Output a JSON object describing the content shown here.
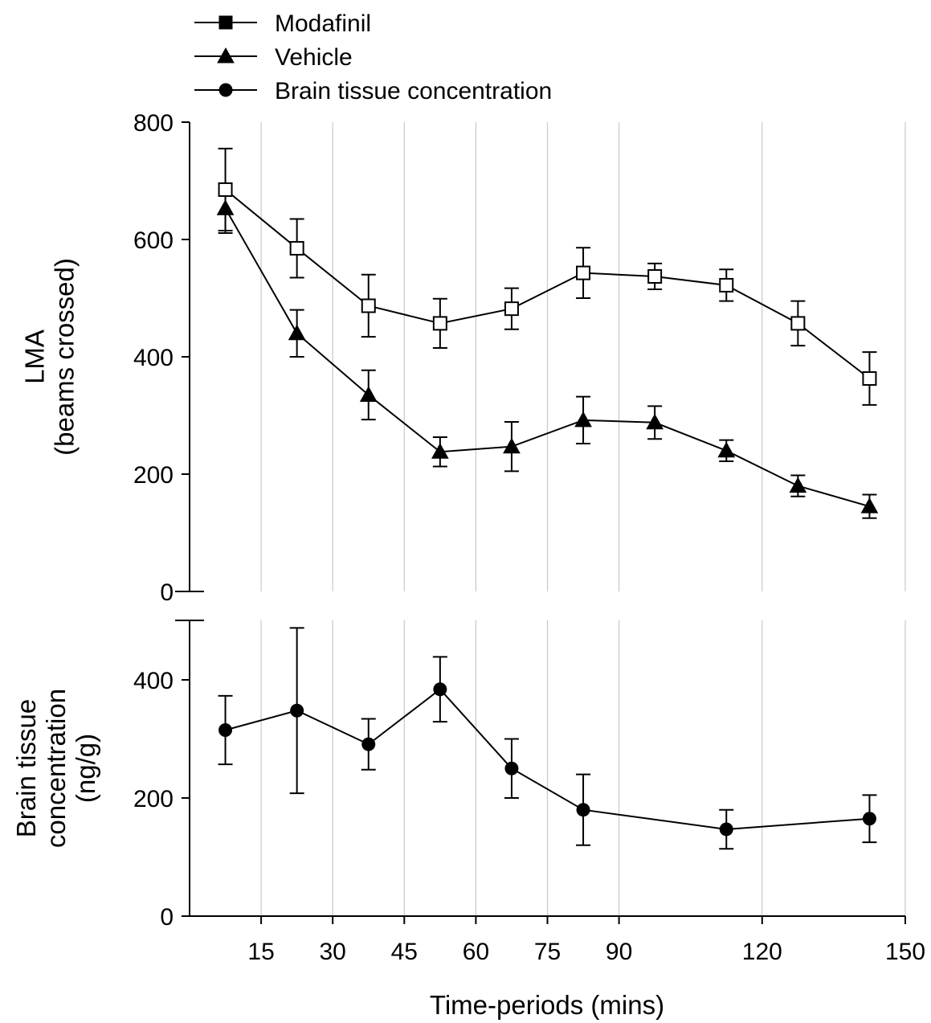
{
  "chart_data": [
    {
      "type": "line",
      "title": "",
      "xlabel": "Time-periods (mins)",
      "ylabel_line1": "LMA",
      "ylabel_line2": "(beams crossed)",
      "ylim": [
        0,
        800
      ],
      "yticks": [
        0,
        200,
        400,
        600,
        800
      ],
      "xlim": [
        0,
        150
      ],
      "xticks": [
        15,
        30,
        45,
        60,
        75,
        90,
        120,
        150
      ],
      "grid": "vertical",
      "series": [
        {
          "name": "Modafinil",
          "marker": "open-square",
          "x": [
            7.5,
            22.5,
            37.5,
            52.5,
            67.5,
            82.5,
            97.5,
            112.5,
            127.5,
            142.5
          ],
          "values": [
            685,
            585,
            487,
            457,
            482,
            543,
            537,
            522,
            457,
            363
          ],
          "error": [
            70,
            50,
            53,
            42,
            35,
            43,
            22,
            27,
            38,
            45
          ]
        },
        {
          "name": "Vehicle",
          "marker": "filled-triangle",
          "x": [
            7.5,
            22.5,
            37.5,
            52.5,
            67.5,
            82.5,
            97.5,
            112.5,
            127.5,
            142.5
          ],
          "values": [
            653,
            440,
            335,
            238,
            247,
            292,
            288,
            240,
            180,
            145
          ],
          "error": [
            42,
            40,
            42,
            25,
            42,
            40,
            28,
            18,
            18,
            20
          ]
        }
      ]
    },
    {
      "type": "line",
      "title": "",
      "xlabel": "Time-periods (mins)",
      "ylabel_line1": "Brain tissue",
      "ylabel_line2": "concentration",
      "ylabel_line3": "(ng/g)",
      "ylim": [
        0,
        500
      ],
      "yticks": [
        0,
        200,
        400
      ],
      "xlim": [
        0,
        150
      ],
      "xticks": [
        15,
        30,
        45,
        60,
        75,
        90,
        120,
        150
      ],
      "grid": "vertical",
      "series": [
        {
          "name": "Brain tissue concentration",
          "marker": "filled-circle",
          "x": [
            7.5,
            22.5,
            37.5,
            52.5,
            67.5,
            82.5,
            112.5,
            142.5
          ],
          "values": [
            315,
            348,
            291,
            384,
            250,
            180,
            147,
            165
          ],
          "error": [
            58,
            140,
            43,
            55,
            50,
            60,
            33,
            40
          ]
        }
      ]
    }
  ],
  "legend": {
    "placement": "top-left",
    "items": [
      {
        "label": "Modafinil",
        "marker": "filled-square"
      },
      {
        "label": "Vehicle",
        "marker": "filled-triangle"
      },
      {
        "label": "Brain tissue concentration",
        "marker": "filled-circle"
      }
    ]
  }
}
